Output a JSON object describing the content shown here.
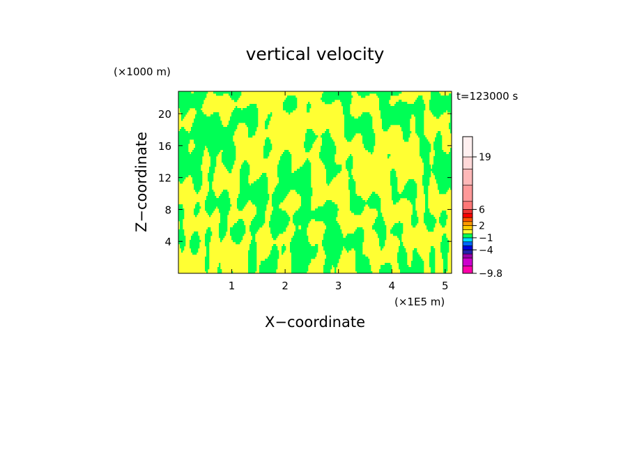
{
  "chart_data": {
    "type": "heatmap",
    "title": "vertical velocity",
    "xlabel": "X−coordinate",
    "ylabel": "Z−coordinate",
    "x_unit": "(×1E5 m)",
    "y_unit": "(×1000 m)",
    "time_label": "t=123000 s",
    "xlim": [
      0,
      5.12
    ],
    "ylim": [
      0,
      22.8
    ],
    "x_ticks": [
      "1",
      "2",
      "3",
      "4",
      "5"
    ],
    "x_tick_values": [
      1,
      2,
      3,
      4,
      5
    ],
    "y_ticks": [
      "4",
      "8",
      "12",
      "16",
      "20"
    ],
    "y_tick_values": [
      4,
      8,
      12,
      16,
      20
    ],
    "field_colors": {
      "positive": "#ffff33",
      "negative": "#00ff55"
    },
    "colorbar": {
      "levels": [
        -9.8,
        -8,
        -6,
        -5,
        -4,
        -3,
        -2,
        -1,
        0,
        1,
        2,
        3,
        4,
        5,
        6,
        8,
        12,
        16,
        19,
        24
      ],
      "colors": [
        "#ff00aa",
        "#cc00cc",
        "#9900aa",
        "#2222aa",
        "#0000dd",
        "#0066ff",
        "#00ddff",
        "#00ff55",
        "#ffff33",
        "#ffcc00",
        "#ff9900",
        "#ff5500",
        "#ff0000",
        "#ee3333",
        "#ff7777",
        "#ff9999",
        "#ffb8b8",
        "#ffd8d8",
        "#fff0f0"
      ],
      "labels": [
        "19",
        "6",
        "2",
        "−1",
        "−4",
        "−9.8"
      ],
      "label_values": [
        19,
        6,
        2,
        -1,
        -4,
        -9.8
      ]
    }
  }
}
